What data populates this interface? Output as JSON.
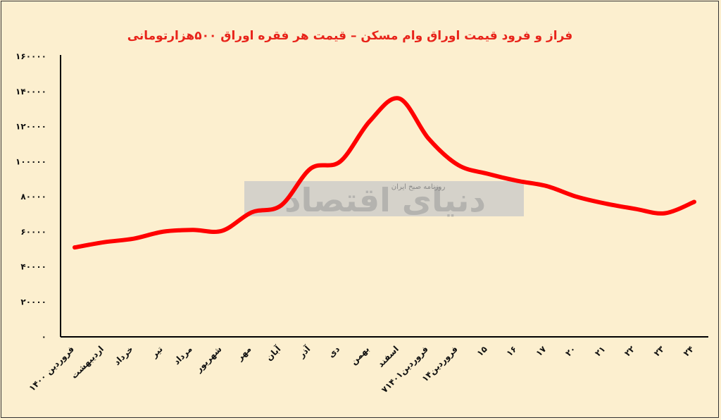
{
  "chart_data": {
    "type": "line",
    "title": "فراز و فرود قیمت اوراق وام مسکن – قیمت هر فقره اوراق ۵۰۰هزارتومانی",
    "categories": [
      "فروردین ۱۴۰۰",
      "اردیبهشت",
      "خرداد",
      "تیر",
      "مرداد",
      "شهریور",
      "مهر",
      "آبان",
      "آذر",
      "دی",
      "بهمن",
      "اسفند",
      "۷فروردین۱۴۰۱",
      "۱۴فروردین",
      "۱۵",
      "۱۶",
      "۱۷",
      "۲۰",
      "۲۱",
      "۲۲",
      "۲۳",
      "۲۴"
    ],
    "series": [
      {
        "values": [
          51000,
          54000,
          56000,
          60000,
          61000,
          60500,
          71000,
          75000,
          96000,
          100000,
          123000,
          136000,
          113000,
          98000,
          93000,
          89000,
          86000,
          80000,
          76000,
          73000,
          70500,
          77000
        ]
      }
    ],
    "yticks": [
      "۰",
      "۲۰۰۰۰",
      "۴۰۰۰۰",
      "۶۰۰۰۰",
      "۸۰۰۰۰",
      "۱۰۰۰۰۰",
      "۱۲۰۰۰۰",
      "۱۴۰۰۰۰",
      "۱۶۰۰۰۰"
    ],
    "ylim": [
      0,
      160000
    ],
    "grid": false,
    "line_color": "#ff0000"
  },
  "watermark": {
    "logo_text": "دنیای اقتصاد",
    "tagline": "روزنامه صبح ایران",
    "box_color": "#c8c8c8"
  }
}
